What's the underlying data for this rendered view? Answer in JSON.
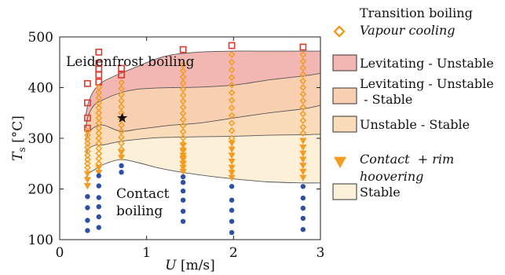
{
  "chart_data": {
    "type": "scatter",
    "xlim": [
      0,
      3
    ],
    "ylim": [
      100,
      500
    ],
    "x_ticks": [
      "0",
      "1",
      "2",
      "3"
    ],
    "y_ticks": [
      "100",
      "200",
      "300",
      "400",
      "500"
    ],
    "xlabel": {
      "var": "U",
      "unit": "[m/s]"
    },
    "ylabel": {
      "var": "T",
      "sub": "s",
      "unit": "[°C]"
    },
    "annotations": {
      "leidenfrost": "Leidenfrost boiling",
      "contact_line1": "Contact",
      "contact_line2": "boiling"
    },
    "colors": {
      "levitating_unstable": "#f3b7b3",
      "levitating_unstable_stable": "#f8cfb0",
      "unstable_stable": "#fbdcba",
      "stable": "#fdf0d8",
      "red_marker": "#e03a2f",
      "orange_marker": "#f39c1f",
      "blue_marker": "#2e4fa6",
      "boundary_line": "#555555"
    },
    "legend": {
      "transition_title": "Transition boiling",
      "vapour_cooling": "Vapour cooling",
      "levitating_unstable": "Levitating - Unstable",
      "levitating_unstable_stable_1": "Levitating - Unstable",
      "levitating_unstable_stable_2": " - Stable",
      "unstable_stable": "Unstable - Stable",
      "contact_rim_1": "Contact  + rim",
      "contact_rim_2": "hoovering",
      "stable": "Stable"
    },
    "boundaries": [
      {
        "name": "upper",
        "points": [
          [
            0.3,
            345
          ],
          [
            0.33,
            370
          ],
          [
            0.4,
            396
          ],
          [
            0.5,
            412
          ],
          [
            0.7,
            428
          ],
          [
            0.9,
            442
          ],
          [
            1.1,
            456
          ],
          [
            1.3,
            465
          ],
          [
            1.6,
            470
          ],
          [
            2.0,
            472
          ],
          [
            2.4,
            472
          ],
          [
            2.8,
            472
          ],
          [
            3.0,
            472
          ]
        ]
      },
      {
        "name": "mid1",
        "points": [
          [
            0.3,
            320
          ],
          [
            0.33,
            345
          ],
          [
            0.4,
            366
          ],
          [
            0.5,
            376
          ],
          [
            0.7,
            390
          ],
          [
            0.9,
            397
          ],
          [
            1.1,
            399
          ],
          [
            1.3,
            400
          ],
          [
            1.6,
            401
          ],
          [
            2.0,
            405
          ],
          [
            2.4,
            415
          ],
          [
            2.8,
            423
          ],
          [
            3.0,
            428
          ]
        ]
      },
      {
        "name": "mid2",
        "points": [
          [
            0.3,
            295
          ],
          [
            0.33,
            310
          ],
          [
            0.4,
            322
          ],
          [
            0.5,
            326
          ],
          [
            0.7,
            314
          ],
          [
            0.9,
            318
          ],
          [
            1.1,
            322
          ],
          [
            1.3,
            326
          ],
          [
            1.6,
            330
          ],
          [
            2.0,
            340
          ],
          [
            2.4,
            350
          ],
          [
            2.8,
            358
          ],
          [
            3.0,
            365
          ]
        ]
      },
      {
        "name": "mid3",
        "points": [
          [
            0.3,
            266
          ],
          [
            0.33,
            278
          ],
          [
            0.4,
            286
          ],
          [
            0.5,
            287
          ],
          [
            0.7,
            294
          ],
          [
            0.9,
            298
          ],
          [
            1.1,
            301
          ],
          [
            1.3,
            302
          ],
          [
            1.6,
            303
          ],
          [
            2.0,
            304
          ],
          [
            2.4,
            306
          ],
          [
            2.8,
            307
          ],
          [
            3.0,
            308
          ]
        ]
      },
      {
        "name": "lower",
        "points": [
          [
            0.3,
            222
          ],
          [
            0.33,
            230
          ],
          [
            0.4,
            238
          ],
          [
            0.5,
            248
          ],
          [
            0.7,
            258
          ],
          [
            0.9,
            252
          ],
          [
            1.1,
            243
          ],
          [
            1.3,
            236
          ],
          [
            1.6,
            228
          ],
          [
            2.0,
            220
          ],
          [
            2.4,
            214
          ],
          [
            2.8,
            212
          ],
          [
            3.0,
            212
          ]
        ]
      }
    ],
    "series": [
      {
        "marker": "square",
        "points": [
          [
            0.32,
            408
          ],
          [
            0.32,
            370
          ],
          [
            0.32,
            340
          ],
          [
            0.32,
            320
          ],
          [
            0.45,
            470
          ],
          [
            0.45,
            448
          ],
          [
            0.45,
            437
          ],
          [
            0.45,
            425
          ],
          [
            0.45,
            411
          ],
          [
            0.71,
            438
          ],
          [
            0.71,
            425
          ],
          [
            1.42,
            475
          ],
          [
            1.98,
            483
          ],
          [
            2.8,
            480
          ]
        ]
      },
      {
        "marker": "diamond",
        "points": [
          [
            0.32,
            314
          ],
          [
            0.32,
            306
          ],
          [
            0.32,
            298
          ],
          [
            0.32,
            290
          ],
          [
            0.32,
            282
          ],
          [
            0.32,
            274
          ],
          [
            0.32,
            266
          ],
          [
            0.32,
            258
          ],
          [
            0.32,
            250
          ],
          [
            0.32,
            242
          ],
          [
            0.45,
            400
          ],
          [
            0.45,
            390
          ],
          [
            0.45,
            380
          ],
          [
            0.45,
            370
          ],
          [
            0.45,
            360
          ],
          [
            0.45,
            350
          ],
          [
            0.45,
            340
          ],
          [
            0.45,
            330
          ],
          [
            0.45,
            320
          ],
          [
            0.45,
            310
          ],
          [
            0.45,
            300
          ],
          [
            0.45,
            290
          ],
          [
            0.45,
            280
          ],
          [
            0.45,
            270
          ],
          [
            0.45,
            260
          ],
          [
            0.45,
            250
          ],
          [
            0.71,
            410
          ],
          [
            0.71,
            398
          ],
          [
            0.71,
            386
          ],
          [
            0.71,
            374
          ],
          [
            0.71,
            362
          ],
          [
            0.71,
            350
          ],
          [
            0.71,
            338
          ],
          [
            0.71,
            326
          ],
          [
            0.71,
            314
          ],
          [
            0.71,
            302
          ],
          [
            0.71,
            290
          ],
          [
            0.71,
            278
          ],
          [
            1.42,
            445
          ],
          [
            1.42,
            433
          ],
          [
            1.42,
            421
          ],
          [
            1.42,
            409
          ],
          [
            1.42,
            397
          ],
          [
            1.42,
            385
          ],
          [
            1.42,
            373
          ],
          [
            1.42,
            361
          ],
          [
            1.42,
            349
          ],
          [
            1.42,
            337
          ],
          [
            1.42,
            325
          ],
          [
            1.42,
            313
          ],
          [
            1.42,
            301
          ],
          [
            1.42,
            289
          ],
          [
            1.42,
            277
          ],
          [
            1.42,
            265
          ],
          [
            1.42,
            253
          ],
          [
            1.98,
            465
          ],
          [
            1.98,
            450
          ],
          [
            1.98,
            435
          ],
          [
            1.98,
            420
          ],
          [
            1.98,
            405
          ],
          [
            1.98,
            390
          ],
          [
            1.98,
            375
          ],
          [
            1.98,
            360
          ],
          [
            1.98,
            345
          ],
          [
            1.98,
            330
          ],
          [
            1.98,
            315
          ],
          [
            1.98,
            300
          ],
          [
            2.8,
            465
          ],
          [
            2.8,
            452
          ],
          [
            2.8,
            439
          ],
          [
            2.8,
            426
          ],
          [
            2.8,
            413
          ],
          [
            2.8,
            400
          ],
          [
            2.8,
            387
          ],
          [
            2.8,
            374
          ],
          [
            2.8,
            361
          ],
          [
            2.8,
            348
          ],
          [
            2.8,
            335
          ],
          [
            2.8,
            322
          ],
          [
            2.8,
            310
          ]
        ]
      },
      {
        "marker": "triangle-down",
        "points": [
          [
            0.32,
            230
          ],
          [
            0.32,
            218
          ],
          [
            0.32,
            206
          ],
          [
            0.45,
            242
          ],
          [
            0.45,
            232
          ],
          [
            0.71,
            272
          ],
          [
            0.71,
            262
          ],
          [
            1.42,
            286
          ],
          [
            1.42,
            276
          ],
          [
            1.42,
            266
          ],
          [
            1.42,
            258
          ],
          [
            1.42,
            250
          ],
          [
            1.42,
            242
          ],
          [
            1.42,
            234
          ],
          [
            1.98,
            290
          ],
          [
            1.98,
            278
          ],
          [
            1.98,
            266
          ],
          [
            1.98,
            254
          ],
          [
            1.98,
            242
          ],
          [
            1.98,
            232
          ],
          [
            1.98,
            222
          ],
          [
            2.8,
            295
          ],
          [
            2.8,
            282
          ],
          [
            2.8,
            270
          ],
          [
            2.8,
            258
          ],
          [
            2.8,
            246
          ],
          [
            2.8,
            234
          ],
          [
            2.8,
            222
          ]
        ]
      },
      {
        "marker": "circle",
        "points": [
          [
            0.32,
            185
          ],
          [
            0.32,
            163
          ],
          [
            0.32,
            138
          ],
          [
            0.32,
            118
          ],
          [
            0.45,
            226
          ],
          [
            0.45,
            206
          ],
          [
            0.45,
            183
          ],
          [
            0.45,
            165
          ],
          [
            0.45,
            145
          ],
          [
            0.45,
            124
          ],
          [
            0.71,
            246
          ],
          [
            0.71,
            233
          ],
          [
            1.42,
            224
          ],
          [
            1.42,
            213
          ],
          [
            1.42,
            196
          ],
          [
            1.42,
            178
          ],
          [
            1.42,
            156
          ],
          [
            1.42,
            136
          ],
          [
            1.98,
            205
          ],
          [
            1.98,
            178
          ],
          [
            1.98,
            158
          ],
          [
            1.98,
            136
          ],
          [
            1.98,
            114
          ],
          [
            2.8,
            205
          ],
          [
            2.8,
            182
          ],
          [
            2.8,
            162
          ],
          [
            2.8,
            142
          ],
          [
            2.8,
            120
          ]
        ]
      },
      {
        "marker": "star",
        "points": [
          [
            0.72,
            340
          ]
        ]
      }
    ]
  }
}
